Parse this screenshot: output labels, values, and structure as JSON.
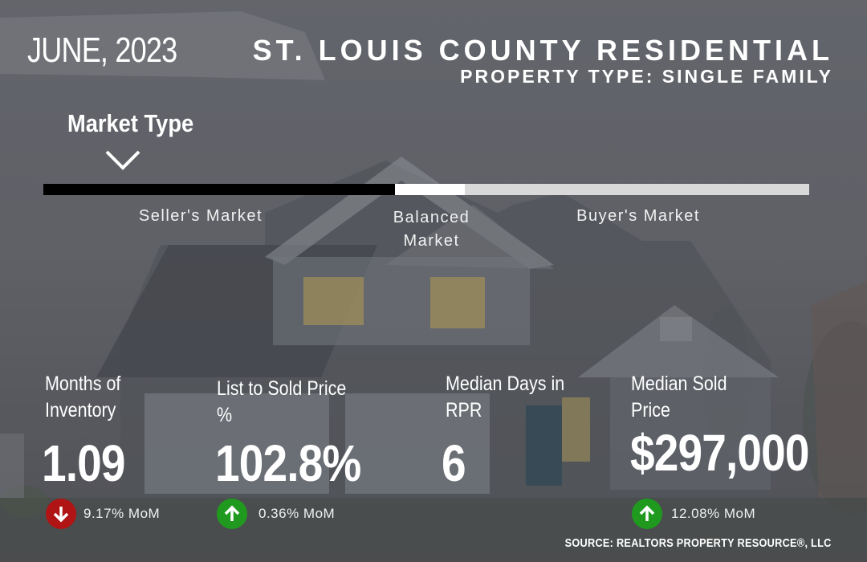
{
  "header": {
    "month": "JUNE, 2023",
    "title": "ST. LOUIS COUNTY RESIDENTIAL",
    "subtitle": "PROPERTY TYPE: SINGLE FAMILY"
  },
  "market": {
    "heading": "Market Type",
    "indicator_icon": "chevron-down-icon",
    "segments": {
      "seller": "Seller's Market",
      "balanced": "Balanced Market",
      "buyer": "Buyer's Market"
    }
  },
  "stats": [
    {
      "label_line1": "Months of",
      "label_line2": "Inventory",
      "value": "1.09",
      "change": "9.17% MoM",
      "direction": "down",
      "icon": "arrow-down-icon",
      "color": "#b01414"
    },
    {
      "label_line1": "List to Sold Price",
      "label_line2": "%",
      "value": "102.8%",
      "change": "0.36% MoM",
      "direction": "up",
      "icon": "arrow-up-icon",
      "color": "#1f9a1f"
    },
    {
      "label_line1": "Median Days in",
      "label_line2": "RPR",
      "value": "6",
      "change": "",
      "direction": "none"
    },
    {
      "label_line1": "Median Sold",
      "label_line2": "Price",
      "value": "$297,000",
      "change": "12.08% MoM",
      "direction": "up",
      "icon": "arrow-up-icon",
      "color": "#1f9a1f"
    }
  ],
  "footer": {
    "source": "SOURCE: REALTORS PROPERTY RESOURCE®, LLC"
  }
}
